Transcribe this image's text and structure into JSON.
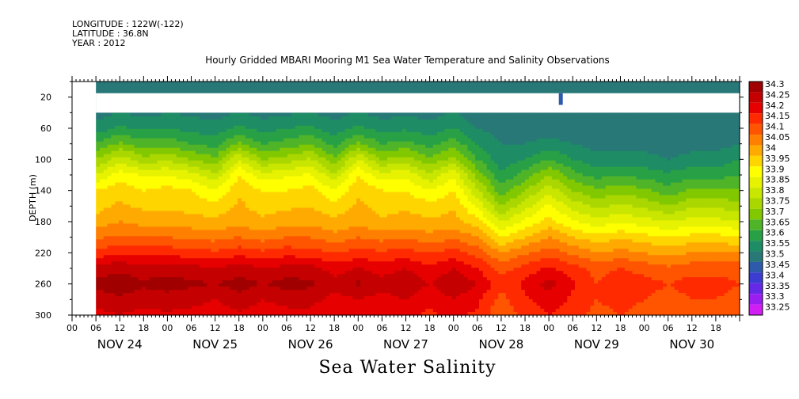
{
  "header": {
    "longitude": "LONGITUDE : 122W(-122)",
    "latitude": "LATITUDE : 36.8N",
    "year": "YEAR : 2012"
  },
  "chart_data": {
    "type": "heatmap",
    "title": "Hourly Gridded MBARI Mooring M1 Sea Water Temperature and Salinity Observations",
    "xlabel": "Sea Water Salinity",
    "ylabel": "DEPTH (m)",
    "x_time_range_hours": [
      0,
      168
    ],
    "data_start_hour": 6,
    "ylim": [
      300,
      0
    ],
    "y_ticks": [
      20,
      60,
      100,
      140,
      180,
      220,
      260,
      300
    ],
    "x_hour_tick_labels": [
      "00",
      "06",
      "12",
      "18",
      "00",
      "06",
      "12",
      "18",
      "00",
      "06",
      "12",
      "18",
      "00",
      "06",
      "12",
      "18",
      "00",
      "06",
      "12",
      "18",
      "00",
      "06",
      "12",
      "18",
      "00",
      "06",
      "12",
      "18"
    ],
    "x_day_labels": [
      "NOV 24",
      "NOV 25",
      "NOV 26",
      "NOV 27",
      "NOV 28",
      "NOV 29",
      "NOV 30"
    ],
    "colorbar": {
      "levels": [
        "34.3",
        "34.25",
        "34.2",
        "34.15",
        "34.1",
        "34.05",
        "34",
        "33.95",
        "33.9",
        "33.85",
        "33.8",
        "33.75",
        "33.7",
        "33.65",
        "33.6",
        "33.55",
        "33.5",
        "33.45",
        "33.4",
        "33.35",
        "33.3",
        "33.25"
      ],
      "colors": [
        "#a00000",
        "#c40000",
        "#e60000",
        "#ff2a00",
        "#ff5500",
        "#ff7f00",
        "#ffaa00",
        "#ffd500",
        "#ffff00",
        "#e6f200",
        "#c8e600",
        "#aad700",
        "#82c800",
        "#50b428",
        "#28a046",
        "#1e8c64",
        "#287878",
        "#2d5aaa",
        "#3c3cd2",
        "#6428e6",
        "#9b1ef0",
        "#d21ef5"
      ]
    },
    "salinity_field": {
      "depths_m": [
        10,
        40,
        60,
        80,
        100,
        120,
        140,
        160,
        180,
        200,
        220,
        240,
        260,
        280,
        300
      ],
      "hours": [
        6,
        12,
        18,
        24,
        30,
        36,
        42,
        48,
        54,
        60,
        66,
        72,
        78,
        84,
        90,
        96,
        102,
        108,
        114,
        120,
        126,
        132,
        138,
        144,
        150,
        156,
        162,
        168
      ],
      "values": [
        [
          33.45,
          33.45,
          33.45,
          33.45,
          33.45,
          33.45,
          33.45,
          33.45,
          33.45,
          33.45,
          33.45,
          33.45,
          33.45,
          33.45,
          33.45,
          33.45,
          33.45,
          33.45,
          33.45,
          33.45,
          33.45,
          33.45,
          33.45,
          33.45,
          33.45,
          33.45,
          33.45,
          33.45
        ],
        [
          33.48,
          33.5,
          33.48,
          33.5,
          33.49,
          33.48,
          33.5,
          33.48,
          33.49,
          33.5,
          33.48,
          33.5,
          33.48,
          33.49,
          33.48,
          33.5,
          33.47,
          33.46,
          33.45,
          33.45,
          33.45,
          33.45,
          33.45,
          33.45,
          33.45,
          33.45,
          33.45,
          33.45
        ],
        [
          33.52,
          33.56,
          33.54,
          33.55,
          33.53,
          33.52,
          33.56,
          33.53,
          33.55,
          33.56,
          33.52,
          33.56,
          33.53,
          33.54,
          33.52,
          33.55,
          33.5,
          33.48,
          33.47,
          33.47,
          33.47,
          33.46,
          33.46,
          33.46,
          33.46,
          33.46,
          33.46,
          33.47
        ],
        [
          33.6,
          33.66,
          33.62,
          33.63,
          33.6,
          33.58,
          33.66,
          33.6,
          33.62,
          33.65,
          33.58,
          33.66,
          33.6,
          33.62,
          33.58,
          33.63,
          33.55,
          33.5,
          33.5,
          33.52,
          33.5,
          33.48,
          33.48,
          33.48,
          33.47,
          33.48,
          33.48,
          33.5
        ],
        [
          33.7,
          33.78,
          33.72,
          33.74,
          33.7,
          33.66,
          33.8,
          33.7,
          33.72,
          33.76,
          33.66,
          33.8,
          33.7,
          33.72,
          33.66,
          33.72,
          33.6,
          33.52,
          33.55,
          33.6,
          33.55,
          33.52,
          33.52,
          33.52,
          33.5,
          33.52,
          33.52,
          33.55
        ],
        [
          33.8,
          33.88,
          33.84,
          33.85,
          33.82,
          33.76,
          33.9,
          33.82,
          33.84,
          33.86,
          33.76,
          33.9,
          33.82,
          33.84,
          33.76,
          33.84,
          33.68,
          33.56,
          33.62,
          33.7,
          33.62,
          33.58,
          33.6,
          33.58,
          33.56,
          33.58,
          33.58,
          33.6
        ],
        [
          33.9,
          33.93,
          33.9,
          33.92,
          33.9,
          33.85,
          33.94,
          33.9,
          33.9,
          33.92,
          33.85,
          33.94,
          33.9,
          33.9,
          33.85,
          33.9,
          33.76,
          33.62,
          33.7,
          33.78,
          33.7,
          33.66,
          33.68,
          33.66,
          33.62,
          33.66,
          33.66,
          33.65
        ],
        [
          33.93,
          33.96,
          33.94,
          33.94,
          33.93,
          33.92,
          33.96,
          33.93,
          33.94,
          33.95,
          33.92,
          33.96,
          33.93,
          33.94,
          33.92,
          33.94,
          33.84,
          33.7,
          33.78,
          33.86,
          33.78,
          33.74,
          33.76,
          33.74,
          33.7,
          33.74,
          33.74,
          33.72
        ],
        [
          33.97,
          34.0,
          33.98,
          33.98,
          33.97,
          33.96,
          33.98,
          33.96,
          33.98,
          33.98,
          33.96,
          33.98,
          33.96,
          33.97,
          33.96,
          33.97,
          33.92,
          33.8,
          33.86,
          33.92,
          33.86,
          33.82,
          33.84,
          33.82,
          33.8,
          33.82,
          33.82,
          33.8
        ],
        [
          34.04,
          34.06,
          34.05,
          34.05,
          34.04,
          34.03,
          34.05,
          34.03,
          34.05,
          34.05,
          34.02,
          34.05,
          34.03,
          34.04,
          34.02,
          34.04,
          34.0,
          33.9,
          33.95,
          34.0,
          33.95,
          33.92,
          33.94,
          33.92,
          33.9,
          33.92,
          33.92,
          33.9
        ],
        [
          34.12,
          34.14,
          34.13,
          34.13,
          34.12,
          34.11,
          34.13,
          34.11,
          34.13,
          34.12,
          34.1,
          34.12,
          34.11,
          34.12,
          34.1,
          34.12,
          34.08,
          34.0,
          34.04,
          34.08,
          34.04,
          34.0,
          34.02,
          34.0,
          33.98,
          34.0,
          34.0,
          34.0
        ],
        [
          34.22,
          34.24,
          34.22,
          34.23,
          34.22,
          34.2,
          34.23,
          34.2,
          34.22,
          34.22,
          34.18,
          34.2,
          34.18,
          34.2,
          34.16,
          34.2,
          34.15,
          34.08,
          34.12,
          34.16,
          34.12,
          34.08,
          34.1,
          34.08,
          34.06,
          34.08,
          34.08,
          34.08
        ],
        [
          34.27,
          34.28,
          34.26,
          34.27,
          34.26,
          34.25,
          34.27,
          34.25,
          34.27,
          34.26,
          34.22,
          34.26,
          34.22,
          34.24,
          34.2,
          34.24,
          34.2,
          34.12,
          34.16,
          34.22,
          34.16,
          34.1,
          34.14,
          34.12,
          34.1,
          34.12,
          34.12,
          34.1
        ],
        [
          34.22,
          34.24,
          34.22,
          34.23,
          34.22,
          34.2,
          34.23,
          34.2,
          34.22,
          34.22,
          34.18,
          34.2,
          34.18,
          34.2,
          34.16,
          34.2,
          34.16,
          34.08,
          34.14,
          34.18,
          34.14,
          34.1,
          34.12,
          34.1,
          34.08,
          34.1,
          34.1,
          34.08
        ],
        [
          34.18,
          34.2,
          34.18,
          34.19,
          34.18,
          34.17,
          34.19,
          34.17,
          34.18,
          34.18,
          34.15,
          34.17,
          34.15,
          34.16,
          34.14,
          34.16,
          34.14,
          34.06,
          34.12,
          34.15,
          34.12,
          34.08,
          34.1,
          34.08,
          34.06,
          34.08,
          34.08,
          34.06
        ]
      ]
    },
    "gaps": [
      {
        "depth_from": 15,
        "depth_to": 40,
        "hour_from": 6,
        "hour_to": 168
      },
      {
        "depth_from": 0,
        "depth_to": 300,
        "hour_from": 0,
        "hour_to": 6
      }
    ],
    "vertical_bar": {
      "hour": 123,
      "depth_from": 15,
      "depth_to": 30
    }
  }
}
